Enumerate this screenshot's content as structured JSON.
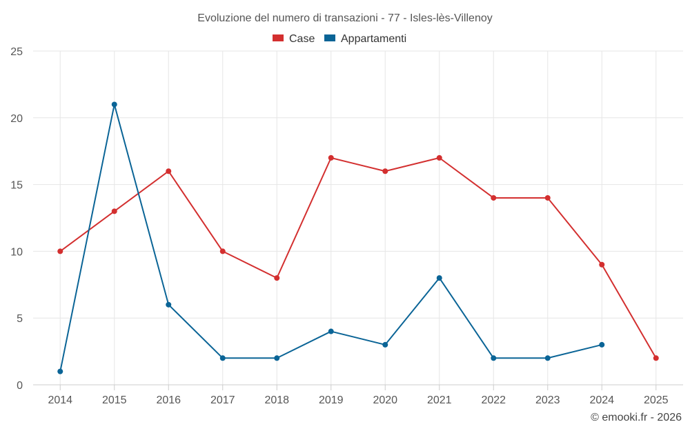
{
  "chart_data": {
    "type": "line",
    "title": "Evoluzione del numero di transazioni - 77 - Isles-lès-Villenoy",
    "xlabel": "",
    "ylabel": "",
    "x": [
      "2014",
      "2015",
      "2016",
      "2017",
      "2018",
      "2019",
      "2020",
      "2021",
      "2022",
      "2023",
      "2024",
      "2025"
    ],
    "ylim": [
      0,
      25
    ],
    "yticks": [
      0,
      5,
      10,
      15,
      20,
      25
    ],
    "grid": true,
    "legend_position": "top-center",
    "series": [
      {
        "name": "Case",
        "color": "#d32f2f",
        "values": [
          10,
          13,
          16,
          10,
          8,
          17,
          16,
          17,
          14,
          14,
          9,
          2
        ]
      },
      {
        "name": "Appartamenti",
        "color": "#0a6496",
        "values": [
          1,
          21,
          6,
          2,
          2,
          4,
          3,
          8,
          2,
          2,
          3,
          null
        ]
      }
    ]
  },
  "credit": "© emooki.fr - 2026"
}
